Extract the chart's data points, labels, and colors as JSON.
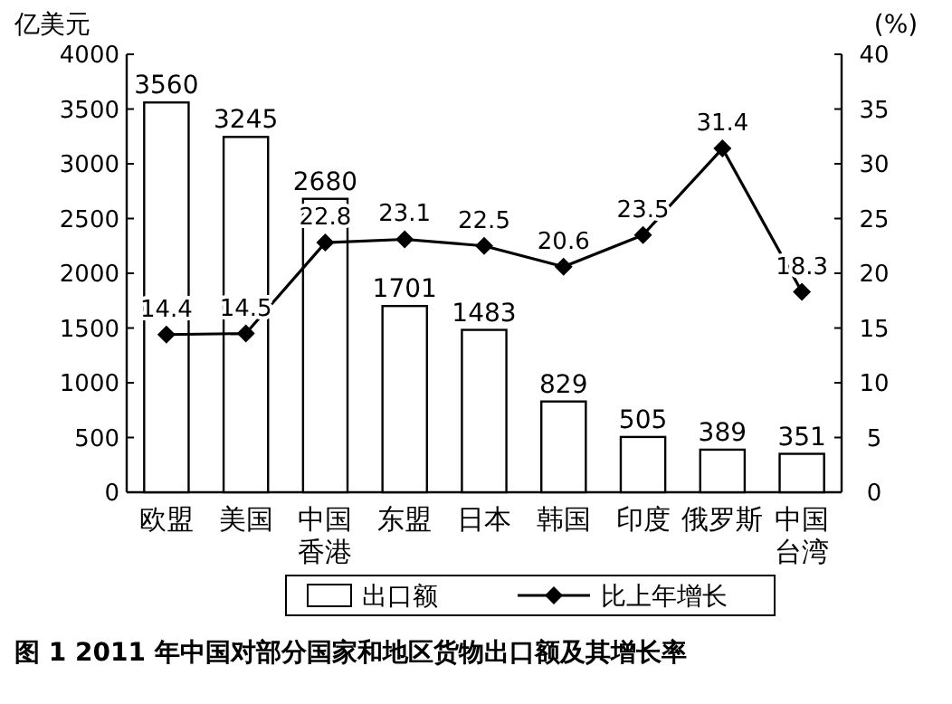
{
  "chart_data": {
    "type": "bar",
    "title": "图 1  2011 年中国对部分国家和地区货物出口额及其增长率",
    "ylabel": "亿美元",
    "y2label": "(%)",
    "categories": [
      "欧盟",
      "美国",
      "中国香港",
      "东盟",
      "日本",
      "韩国",
      "印度",
      "俄罗斯",
      "中国台湾"
    ],
    "series": [
      {
        "name": "出口额",
        "color": "#ffffff",
        "values": [
          3560,
          3245,
          2680,
          1701,
          1483,
          829,
          505,
          389,
          351
        ]
      },
      {
        "name": "比上年增长",
        "type": "line",
        "axis": "y2",
        "color": "#000000",
        "marker": "diamond",
        "values": [
          14.4,
          14.5,
          22.8,
          23.1,
          22.5,
          20.6,
          23.5,
          31.4,
          18.3
        ]
      }
    ],
    "ylim": [
      0,
      4000
    ],
    "yticks": [
      0,
      500,
      1000,
      1500,
      2000,
      2500,
      3000,
      3500,
      4000
    ],
    "y2lim": [
      0,
      40
    ],
    "y2ticks": [
      0,
      5,
      10,
      15,
      20,
      25,
      30,
      35,
      40
    ],
    "data_labels": true,
    "grid": false,
    "legend": "bottom"
  }
}
